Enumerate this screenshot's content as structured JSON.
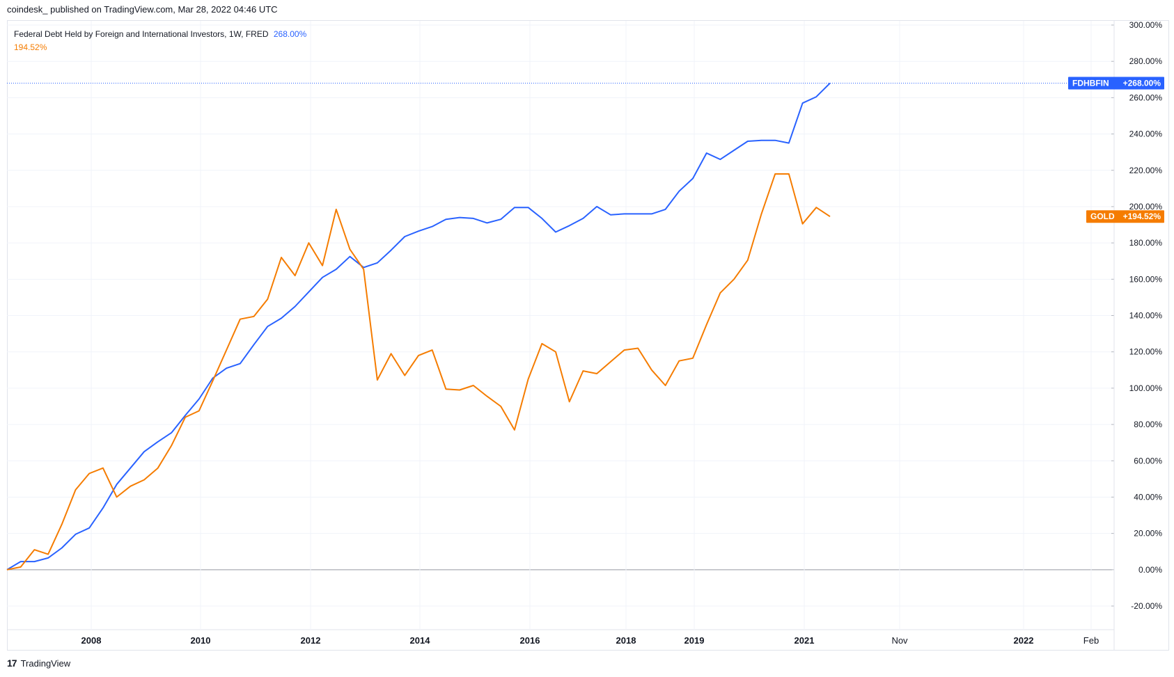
{
  "header": {
    "published": "coindesk_ published on TradingView.com, Mar 28, 2022 04:46 UTC"
  },
  "legend": {
    "title": "Federal Debt Held by Foreign and International Investors, 1W, FRED",
    "value_blue": "268.00%",
    "value_orange": "194.52%"
  },
  "footer": {
    "brand": "TradingView",
    "logo_glyph": "17"
  },
  "colors": {
    "blue": "#2962ff",
    "orange": "#f57c00",
    "grid": "#f0f3fa",
    "zero": "#9598a1"
  },
  "chart_data": {
    "type": "line",
    "ylim": [
      -20,
      300
    ],
    "yticks": [
      "300.00%",
      "280.00%",
      "260.00%",
      "240.00%",
      "220.00%",
      "200.00%",
      "180.00%",
      "160.00%",
      "140.00%",
      "120.00%",
      "100.00%",
      "80.00%",
      "60.00%",
      "40.00%",
      "20.00%",
      "0.00%",
      "-20.00%"
    ],
    "xticks": [
      {
        "label": "2008",
        "bold": true
      },
      {
        "label": "2010",
        "bold": true
      },
      {
        "label": "2012",
        "bold": true
      },
      {
        "label": "2014",
        "bold": true
      },
      {
        "label": "2016",
        "bold": true
      },
      {
        "label": "2018",
        "bold": true
      },
      {
        "label": "2019",
        "bold": true
      },
      {
        "label": "2021",
        "bold": true
      },
      {
        "label": "Nov",
        "bold": false
      },
      {
        "label": "2022",
        "bold": true
      },
      {
        "label": "Feb",
        "bold": false
      }
    ],
    "series": [
      {
        "name": "FDHBFIN",
        "color": "#2962ff",
        "badge_label": "FDHBFIN",
        "badge_value": "+268.00%",
        "last_value": 268.0,
        "values": [
          0,
          4.5,
          4.5,
          6.5,
          12,
          19.5,
          23,
          34,
          47,
          56,
          65,
          70.5,
          75.5,
          85,
          94,
          105.5,
          111,
          113.5,
          124,
          134,
          138.5,
          145,
          153,
          161,
          165.5,
          172.5,
          166.5,
          169,
          176,
          183.5,
          186.5,
          189,
          193,
          194,
          193.5,
          191,
          193,
          199.5,
          199.5,
          193.5,
          186,
          189.5,
          193.5,
          200,
          195.5,
          196,
          196,
          196,
          198.5,
          208.5,
          215.5,
          229.5,
          226,
          231,
          236,
          236.5,
          236.5,
          235,
          257,
          260.5,
          268
        ]
      },
      {
        "name": "GOLD",
        "color": "#f57c00",
        "badge_label": "GOLD",
        "badge_value": "+194.52%",
        "last_value": 194.52,
        "values": [
          0,
          1.5,
          11,
          8.5,
          25,
          44,
          53,
          56,
          40,
          46,
          49.5,
          56,
          68.5,
          84,
          87.5,
          104,
          121,
          138,
          139.5,
          149,
          172,
          162,
          180,
          167.5,
          198.5,
          176.5,
          165.5,
          104.5,
          119,
          107,
          118,
          121,
          99.5,
          99,
          101.5,
          95.5,
          90,
          77,
          105,
          124.5,
          120,
          92.5,
          109.5,
          108,
          114.5,
          121,
          122,
          110,
          101.5,
          115,
          116.5,
          135,
          152.5,
          160,
          170.5,
          196,
          218,
          218,
          190.5,
          199.5,
          194.52
        ]
      }
    ]
  }
}
